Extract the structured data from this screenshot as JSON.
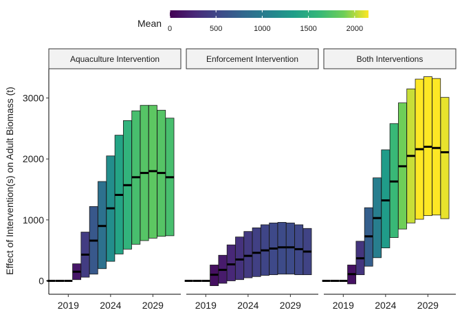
{
  "chart_data": {
    "type": "bar",
    "ylabel": "Effect of Intervention(s) on Adult Biomass (t)",
    "xlabel": "",
    "ylim": [
      -220,
      3480
    ],
    "xlim": [
      2016.7,
      2032.3
    ],
    "x_ticks": [
      2019,
      2024,
      2029
    ],
    "y_ticks": [
      0,
      1000,
      2000,
      3000
    ],
    "legend": {
      "title": "Mean",
      "placement": "top",
      "range": [
        0,
        2150
      ],
      "ticks": [
        0,
        500,
        1000,
        1500,
        2000
      ]
    },
    "years": [
      2017,
      2018,
      2019,
      2020,
      2021,
      2022,
      2023,
      2024,
      2025,
      2026,
      2027,
      2028,
      2029,
      2030,
      2031
    ],
    "panels": [
      {
        "label": "Aquaculture Intervention",
        "mean": [
          0,
          0,
          0,
          150,
          430,
          660,
          900,
          1190,
          1410,
          1570,
          1700,
          1770,
          1800,
          1770,
          1700
        ],
        "lower": [
          0,
          0,
          0,
          20,
          60,
          110,
          200,
          320,
          440,
          520,
          600,
          660,
          700,
          730,
          740
        ],
        "upper": [
          0,
          0,
          0,
          280,
          800,
          1220,
          1630,
          2050,
          2390,
          2630,
          2790,
          2880,
          2880,
          2800,
          2670
        ]
      },
      {
        "label": "Enforcement Intervention",
        "mean": [
          0,
          0,
          0,
          100,
          180,
          270,
          350,
          410,
          460,
          500,
          530,
          550,
          550,
          520,
          480
        ],
        "lower": [
          0,
          0,
          0,
          -80,
          -40,
          0,
          20,
          50,
          70,
          90,
          100,
          110,
          110,
          100,
          100
        ],
        "upper": [
          0,
          0,
          0,
          260,
          420,
          590,
          720,
          810,
          870,
          920,
          950,
          960,
          950,
          920,
          860
        ]
      },
      {
        "label": "Both Interventions",
        "mean": [
          0,
          0,
          0,
          110,
          370,
          730,
          1030,
          1320,
          1630,
          1880,
          2050,
          2160,
          2200,
          2180,
          2110
        ],
        "lower": [
          0,
          0,
          0,
          -50,
          100,
          240,
          380,
          540,
          710,
          850,
          950,
          1010,
          1070,
          1080,
          1020
        ],
        "upper": [
          0,
          0,
          0,
          260,
          650,
          1200,
          1690,
          2150,
          2580,
          2920,
          3150,
          3310,
          3350,
          3320,
          3010
        ]
      }
    ]
  }
}
